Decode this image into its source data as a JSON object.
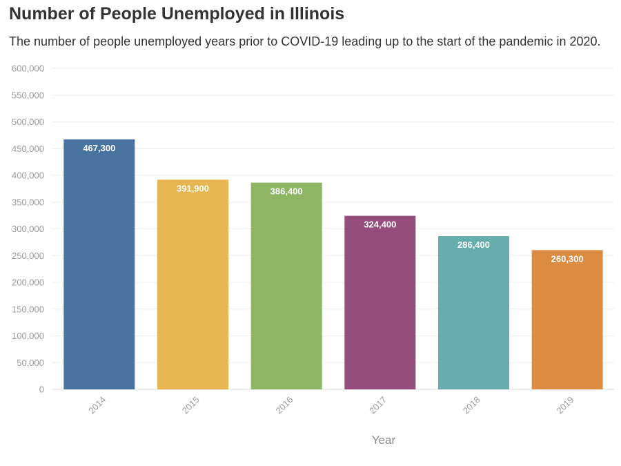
{
  "header": {
    "title": "Number of People Unemployed in Illinois",
    "subtitle": "The number of people unemployed years prior to COVID-19 leading up to the start of the pandemic in 2020."
  },
  "chart_data": {
    "type": "bar",
    "title": "Number of People Unemployed in Illinois",
    "subtitle": "The number of people unemployed years prior to COVID-19 leading up to the start of the pandemic in 2020.",
    "categories": [
      "2014",
      "2015",
      "2016",
      "2017",
      "2018",
      "2019"
    ],
    "values": [
      467300,
      391900,
      386400,
      324400,
      286400,
      260300
    ],
    "data_labels": [
      "467,300",
      "391,900",
      "386,400",
      "324,400",
      "286,400",
      "260,300"
    ],
    "bar_colors": [
      "#4a74a0",
      "#e6b651",
      "#8db565",
      "#954e7c",
      "#68adad",
      "#dc8c42"
    ],
    "xlabel": "Year",
    "ylabel": "",
    "ylim": [
      0,
      600000
    ],
    "yticks": [
      0,
      50000,
      100000,
      150000,
      200000,
      250000,
      300000,
      350000,
      400000,
      450000,
      500000,
      550000,
      600000
    ],
    "ytick_labels": [
      "0",
      "50,000",
      "100,000",
      "150,000",
      "200,000",
      "250,000",
      "300,000",
      "350,000",
      "400,000",
      "450,000",
      "500,000",
      "550,000",
      "600,000"
    ],
    "grid": true,
    "legend": "none"
  }
}
